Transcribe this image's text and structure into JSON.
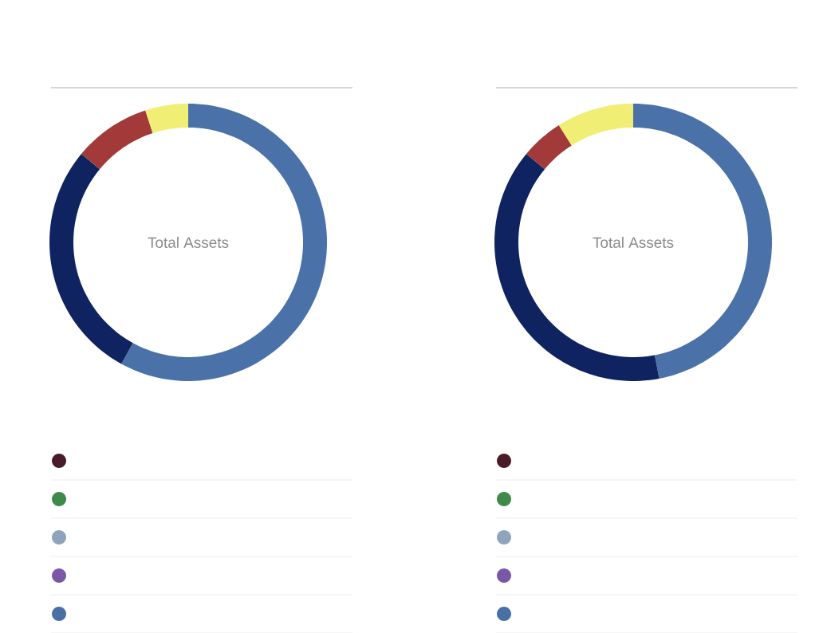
{
  "chart_data": [
    {
      "type": "donut",
      "title": "Total Assets",
      "categories": [
        null,
        null,
        null,
        null
      ],
      "values": [
        58,
        28,
        9,
        5
      ],
      "colors": [
        "#4a72a8",
        "#0f2361",
        "#a33a3a",
        "#f0ee74"
      ]
    },
    {
      "type": "donut",
      "title": "Total Assets",
      "categories": [
        null,
        null,
        null,
        null
      ],
      "values": [
        47,
        39,
        5,
        9
      ],
      "colors": [
        "#4a72a8",
        "#0f2361",
        "#a33a3a",
        "#f0ee74"
      ]
    }
  ]
}
